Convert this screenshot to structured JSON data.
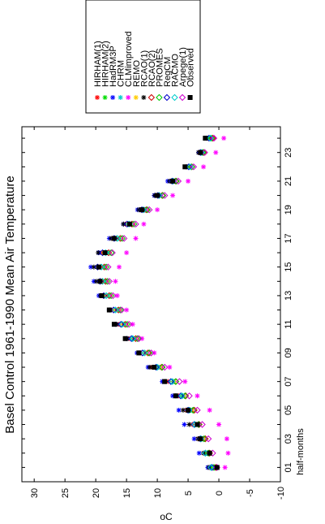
{
  "chart_data": {
    "type": "scatter",
    "title": "Basel Control 1961-1990 Mean Air Temperature",
    "xlabel": "half-months",
    "ylabel": "oC",
    "x_ticks": [
      "01",
      "03",
      "05",
      "07",
      "09",
      "11",
      "13",
      "15",
      "17",
      "19",
      "21",
      "23"
    ],
    "xlim": [
      0,
      24.8
    ],
    "ylim": [
      -10,
      32
    ],
    "y_ticks": [
      -10,
      -5,
      0,
      5,
      10,
      15,
      20,
      25,
      30
    ],
    "x": [
      1,
      2,
      3,
      4,
      5,
      6,
      7,
      8,
      9,
      10,
      11,
      12,
      13,
      14,
      15,
      16,
      17,
      18,
      19,
      20,
      21,
      22,
      23,
      24
    ],
    "legend_position": "top",
    "series": [
      {
        "name": "HIRHAM(1)",
        "color": "#ff0000",
        "marker": "star",
        "values": [
          1.5,
          2.3,
          3.2,
          4.3,
          5.2,
          6.5,
          8.2,
          10.8,
          12.8,
          14.6,
          16.2,
          17.2,
          18.8,
          19.3,
          19.5,
          19.0,
          17.1,
          15.2,
          12.7,
          10.2,
          7.8,
          5.0,
          3.1,
          1.8
        ]
      },
      {
        "name": "HIRHAM(2)",
        "color": "#00dd00",
        "marker": "star",
        "values": [
          1.2,
          2.0,
          2.8,
          3.6,
          4.6,
          5.9,
          7.4,
          9.8,
          12.0,
          13.9,
          15.4,
          16.5,
          18.0,
          18.5,
          18.7,
          18.0,
          16.2,
          14.3,
          12.0,
          9.5,
          7.2,
          4.6,
          2.7,
          1.3
        ]
      },
      {
        "name": "HadRM3P",
        "color": "#0000ff",
        "marker": "star",
        "values": [
          1.8,
          3.2,
          4.0,
          5.6,
          6.5,
          7.5,
          9.2,
          11.5,
          13.3,
          15.0,
          16.8,
          17.8,
          19.5,
          20.3,
          20.8,
          19.5,
          17.8,
          15.5,
          13.2,
          10.5,
          8.3,
          5.3,
          3.3,
          2.0
        ]
      },
      {
        "name": "CHRM",
        "color": "#00cccc",
        "marker": "star",
        "values": [
          1.0,
          2.0,
          2.6,
          3.7,
          4.5,
          5.8,
          7.3,
          9.7,
          11.9,
          13.8,
          15.5,
          16.5,
          18.0,
          18.6,
          18.8,
          18.2,
          16.4,
          14.4,
          12.1,
          9.5,
          7.3,
          4.6,
          2.8,
          1.4
        ]
      },
      {
        "name": "CLMimproved",
        "color": "#ff00ff",
        "marker": "star",
        "values": [
          -1.0,
          -1.5,
          -1.3,
          0.0,
          1.5,
          3.5,
          5.5,
          8.0,
          10.5,
          12.5,
          14.0,
          15.0,
          16.5,
          16.8,
          16.2,
          15.0,
          13.5,
          12.2,
          10.0,
          7.5,
          5.0,
          2.5,
          0.5,
          -0.8
        ]
      },
      {
        "name": "REMO",
        "color": "#ffcc00",
        "marker": "star",
        "values": [
          0.8,
          1.8,
          2.4,
          3.4,
          4.3,
          5.6,
          7.2,
          9.5,
          11.8,
          13.7,
          15.6,
          16.9,
          18.4,
          19.1,
          19.4,
          18.7,
          16.9,
          14.8,
          12.4,
          9.8,
          7.5,
          4.8,
          2.9,
          1.5
        ]
      },
      {
        "name": "RCAO(1)",
        "color": "#000000",
        "marker": "star",
        "values": [
          1.6,
          2.5,
          3.4,
          4.8,
          5.8,
          7.0,
          8.7,
          11.2,
          13.0,
          14.9,
          16.6,
          17.7,
          19.2,
          19.9,
          20.3,
          19.6,
          17.5,
          15.5,
          13.0,
          10.4,
          8.0,
          5.3,
          3.3,
          1.9
        ]
      },
      {
        "name": "RCAO(2)",
        "color": "#cc0000",
        "marker": "diamond",
        "values": [
          0.5,
          1.5,
          2.2,
          3.2,
          4.0,
          5.4,
          7.0,
          9.3,
          11.5,
          13.5,
          15.2,
          16.3,
          17.8,
          18.4,
          18.6,
          17.9,
          16.0,
          14.1,
          11.8,
          9.2,
          7.0,
          4.4,
          2.5,
          1.0
        ]
      },
      {
        "name": "PROMES",
        "color": "#00cc00",
        "marker": "diamond",
        "values": [
          0.8,
          1.7,
          2.4,
          3.3,
          4.2,
          5.5,
          7.0,
          9.2,
          11.3,
          13.2,
          14.9,
          16.0,
          17.5,
          18.1,
          18.3,
          17.5,
          15.7,
          13.8,
          11.6,
          9.1,
          6.9,
          4.4,
          2.6,
          1.2
        ]
      },
      {
        "name": "RegCM",
        "color": "#0000cc",
        "marker": "diamond",
        "values": [
          1.1,
          2.2,
          3.0,
          4.0,
          5.0,
          6.2,
          7.8,
          10.2,
          12.4,
          14.2,
          15.9,
          17.1,
          18.7,
          19.3,
          19.7,
          18.9,
          17.0,
          14.9,
          12.5,
          9.9,
          7.6,
          4.9,
          3.0,
          1.6
        ]
      },
      {
        "name": "RACMO",
        "color": "#00cccc",
        "marker": "diamond",
        "values": [
          1.3,
          2.2,
          2.9,
          3.9,
          4.8,
          6.0,
          7.6,
          10.0,
          12.1,
          14.0,
          15.7,
          16.8,
          18.3,
          18.9,
          19.1,
          18.4,
          16.5,
          14.6,
          12.2,
          9.7,
          7.4,
          4.7,
          2.8,
          1.4
        ]
      },
      {
        "name": "Arpege(1)",
        "color": "#cc00cc",
        "marker": "diamond",
        "values": [
          0.3,
          1.0,
          1.7,
          2.7,
          3.5,
          4.8,
          6.4,
          8.8,
          11.0,
          13.0,
          14.6,
          15.8,
          17.2,
          17.8,
          18.0,
          17.3,
          15.4,
          13.5,
          11.3,
          8.8,
          6.6,
          4.1,
          2.3,
          0.8
        ]
      },
      {
        "name": "Observed",
        "color": "#000000",
        "marker": "square",
        "values": [
          0.3,
          1.5,
          3.0,
          3.5,
          5.0,
          7.0,
          8.8,
          10.5,
          13.0,
          15.2,
          17.0,
          17.8,
          19.0,
          19.3,
          19.5,
          18.5,
          17.0,
          14.5,
          12.5,
          10.0,
          7.5,
          5.5,
          3.0,
          2.2
        ]
      }
    ]
  }
}
